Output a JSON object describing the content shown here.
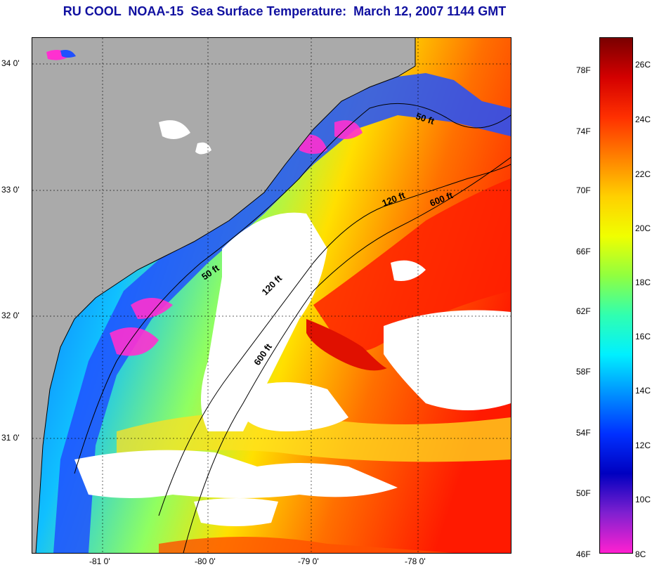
{
  "title": "RU COOL  NOAA-15  Sea Surface Temperature:  March 12, 2007 1144 GMT",
  "latitudes": [
    {
      "label": "34 0'",
      "value": 34.0
    },
    {
      "label": "33 0'",
      "value": 33.0
    },
    {
      "label": "32 0'",
      "value": 32.0
    },
    {
      "label": "31 0'",
      "value": 31.0
    }
  ],
  "longitudes": [
    {
      "label": "-81 0'",
      "value": -81.0
    },
    {
      "label": "-80 0'",
      "value": -80.0
    },
    {
      "label": "-79 0'",
      "value": -79.0
    },
    {
      "label": "-78 0'",
      "value": -78.0
    }
  ],
  "contours": [
    {
      "label": "50 ft"
    },
    {
      "label": "120 ft"
    },
    {
      "label": "600 ft"
    },
    {
      "label": "50 ft"
    },
    {
      "label": "120 ft"
    },
    {
      "label": "600 ft"
    }
  ],
  "colorbar": {
    "fahrenheit": [
      "78F",
      "74F",
      "70F",
      "66F",
      "62F",
      "58F",
      "54F",
      "50F",
      "46F"
    ],
    "celsius": [
      "26C",
      "24C",
      "22C",
      "20C",
      "18C",
      "16C",
      "14C",
      "12C",
      "10C",
      "8C"
    ],
    "colors": [
      "#7a0000",
      "#d40000",
      "#ff3000",
      "#ff8000",
      "#ffd000",
      "#f0ff00",
      "#90ff40",
      "#30ffb0",
      "#00f0ff",
      "#0090ff",
      "#0030ff",
      "#0000c0",
      "#8020d0",
      "#ff20d0"
    ]
  },
  "colors": {
    "land": "#aaaaaa",
    "cloud": "#ffffff",
    "title": "#1010a0"
  }
}
